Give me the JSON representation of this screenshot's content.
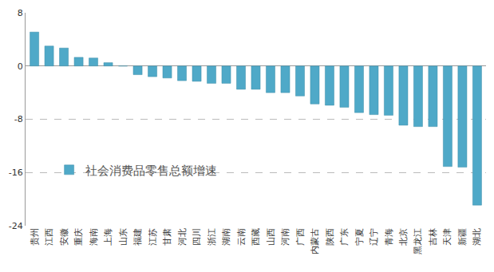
{
  "chart_data": {
    "type": "bar",
    "categories": [
      "贵州",
      "江西",
      "安徽",
      "重庆",
      "海南",
      "上海",
      "山东",
      "福建",
      "江苏",
      "甘肃",
      "河北",
      "四川",
      "浙江",
      "湖南",
      "云南",
      "西藏",
      "山西",
      "河南",
      "广西",
      "内蒙古",
      "陕西",
      "广东",
      "宁夏",
      "辽宁",
      "青海",
      "北京",
      "黑龙江",
      "吉林",
      "天津",
      "新疆",
      "湖北"
    ],
    "series": [
      {
        "name": "社会消费品零售总额增速",
        "color": "#4fa9c8",
        "values": [
          5.1,
          3.0,
          2.7,
          1.3,
          1.2,
          0.5,
          0.0,
          -1.3,
          -1.6,
          -1.8,
          -2.2,
          -2.3,
          -2.6,
          -2.6,
          -3.5,
          -3.5,
          -4.0,
          -4.0,
          -4.5,
          -5.7,
          -5.9,
          -6.2,
          -7.0,
          -7.3,
          -7.4,
          -8.9,
          -9.1,
          -9.1,
          -15.1,
          -15.2,
          -20.9
        ]
      }
    ],
    "ylim": [
      -24,
      8
    ],
    "yticks": [
      -24,
      -16,
      -8,
      0,
      8
    ],
    "grid": true,
    "legend": "lower left"
  }
}
